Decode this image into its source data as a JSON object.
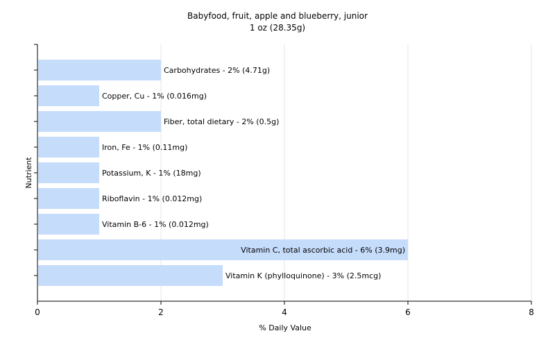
{
  "chart_data": {
    "type": "bar",
    "orientation": "horizontal",
    "title": "Babyfood, fruit, apple and blueberry, junior",
    "subtitle": "1 oz (28.35g)",
    "xlabel": "% Daily Value",
    "ylabel": "Nutrient",
    "xlim": [
      0,
      8
    ],
    "xticks": [
      "0",
      "2",
      "4",
      "6",
      "8"
    ],
    "grid": true,
    "bar_color": "#c6dcfb",
    "categories": [
      "Carbohydrates",
      "Copper, Cu",
      "Fiber, total dietary",
      "Iron, Fe",
      "Potassium, K",
      "Riboflavin",
      "Vitamin B-6",
      "Vitamin C, total ascorbic acid",
      "Vitamin K (phylloquinone)"
    ],
    "values": [
      2,
      1,
      2,
      1,
      1,
      1,
      1,
      6,
      3
    ],
    "labels": [
      "Carbohydrates - 2% (4.71g)",
      "Copper, Cu - 1% (0.016mg)",
      "Fiber, total dietary - 2% (0.5g)",
      "Iron, Fe - 1% (0.11mg)",
      "Potassium, K - 1% (18mg)",
      "Riboflavin - 1% (0.012mg)",
      "Vitamin B-6 - 1% (0.012mg)",
      "Vitamin C, total ascorbic acid - 6% (3.9mg)",
      "Vitamin K (phylloquinone) - 3% (2.5mcg)"
    ]
  }
}
